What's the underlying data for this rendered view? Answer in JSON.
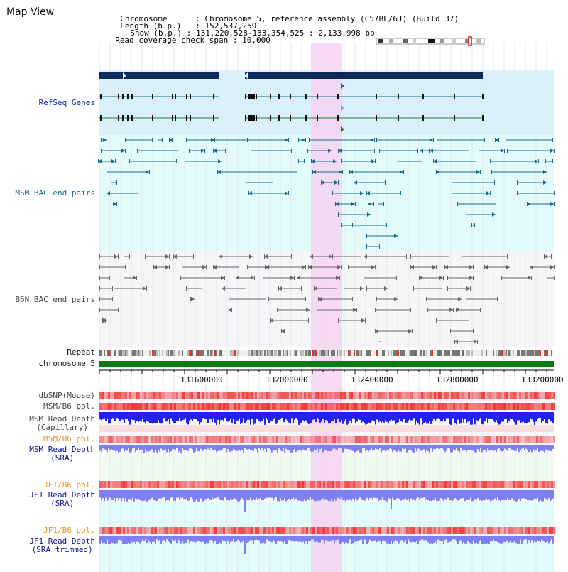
{
  "app": {
    "title": "Map View"
  },
  "info": {
    "chromosome_key": "Chromosome",
    "chromosome_value": "Chromosome 5, reference assembly (C57BL/6J) (Build 37)",
    "length_key": "Length (b.p.)",
    "length_value": "152,537,259",
    "show_key": "Show (b.p.)",
    "show_value": "131,220,528-133,354,525 : 2,133,998 bp",
    "coverage_key": "Read coverage check span",
    "coverage_value": "10,000"
  },
  "tracks": {
    "refseq": "RefSeq Genes",
    "msm_bac": "MSM BAC end pairs",
    "b6n_bac": "B6N BAC end pairs",
    "repeat": "Repeat",
    "chromosome": "chromosome 5",
    "dbsnp": "dbSNP(Mouse)",
    "msm_b6_pol_1": "MSM/B6 pol.",
    "msm_depth_cap_1": "MSM Read Depth",
    "msm_depth_cap_2": "(Capillary)",
    "msm_b6_pol_2": "MSM/B6 pol.",
    "msm_depth_sra_1": "MSM Read Depth",
    "msm_depth_sra_2": "(SRA)",
    "jf1_b6_pol_1": "JF1/B6 pol.",
    "jf1_depth_sra_1": "JF1 Read Depth",
    "jf1_depth_sra_2": "(SRA)",
    "jf1_b6_pol_2": "JF1/B6 pol.",
    "jf1_depth_trim_1": "JF1 Read Depth",
    "jf1_depth_trim_2": "(SRA trimmed)"
  },
  "ruler": {
    "ticks": [
      "131600000",
      "132000000",
      "132400000",
      "132800000",
      "133200000"
    ]
  },
  "colors": {
    "refseq_bg": "#d9f1fb",
    "msm_bg": "#e2fbfb",
    "b6n_bg": "#f4f6f8",
    "highlight": "#f6d3f2",
    "chromosome_bar": "#0a7a14",
    "gene_bar": "#0c2a5c",
    "msm_line": "#1c6a8a",
    "b6n_line": "#666666",
    "depth_blue": "#2222ee",
    "depth_light": "#7f7ff4",
    "pol_red": "#f04646"
  }
}
